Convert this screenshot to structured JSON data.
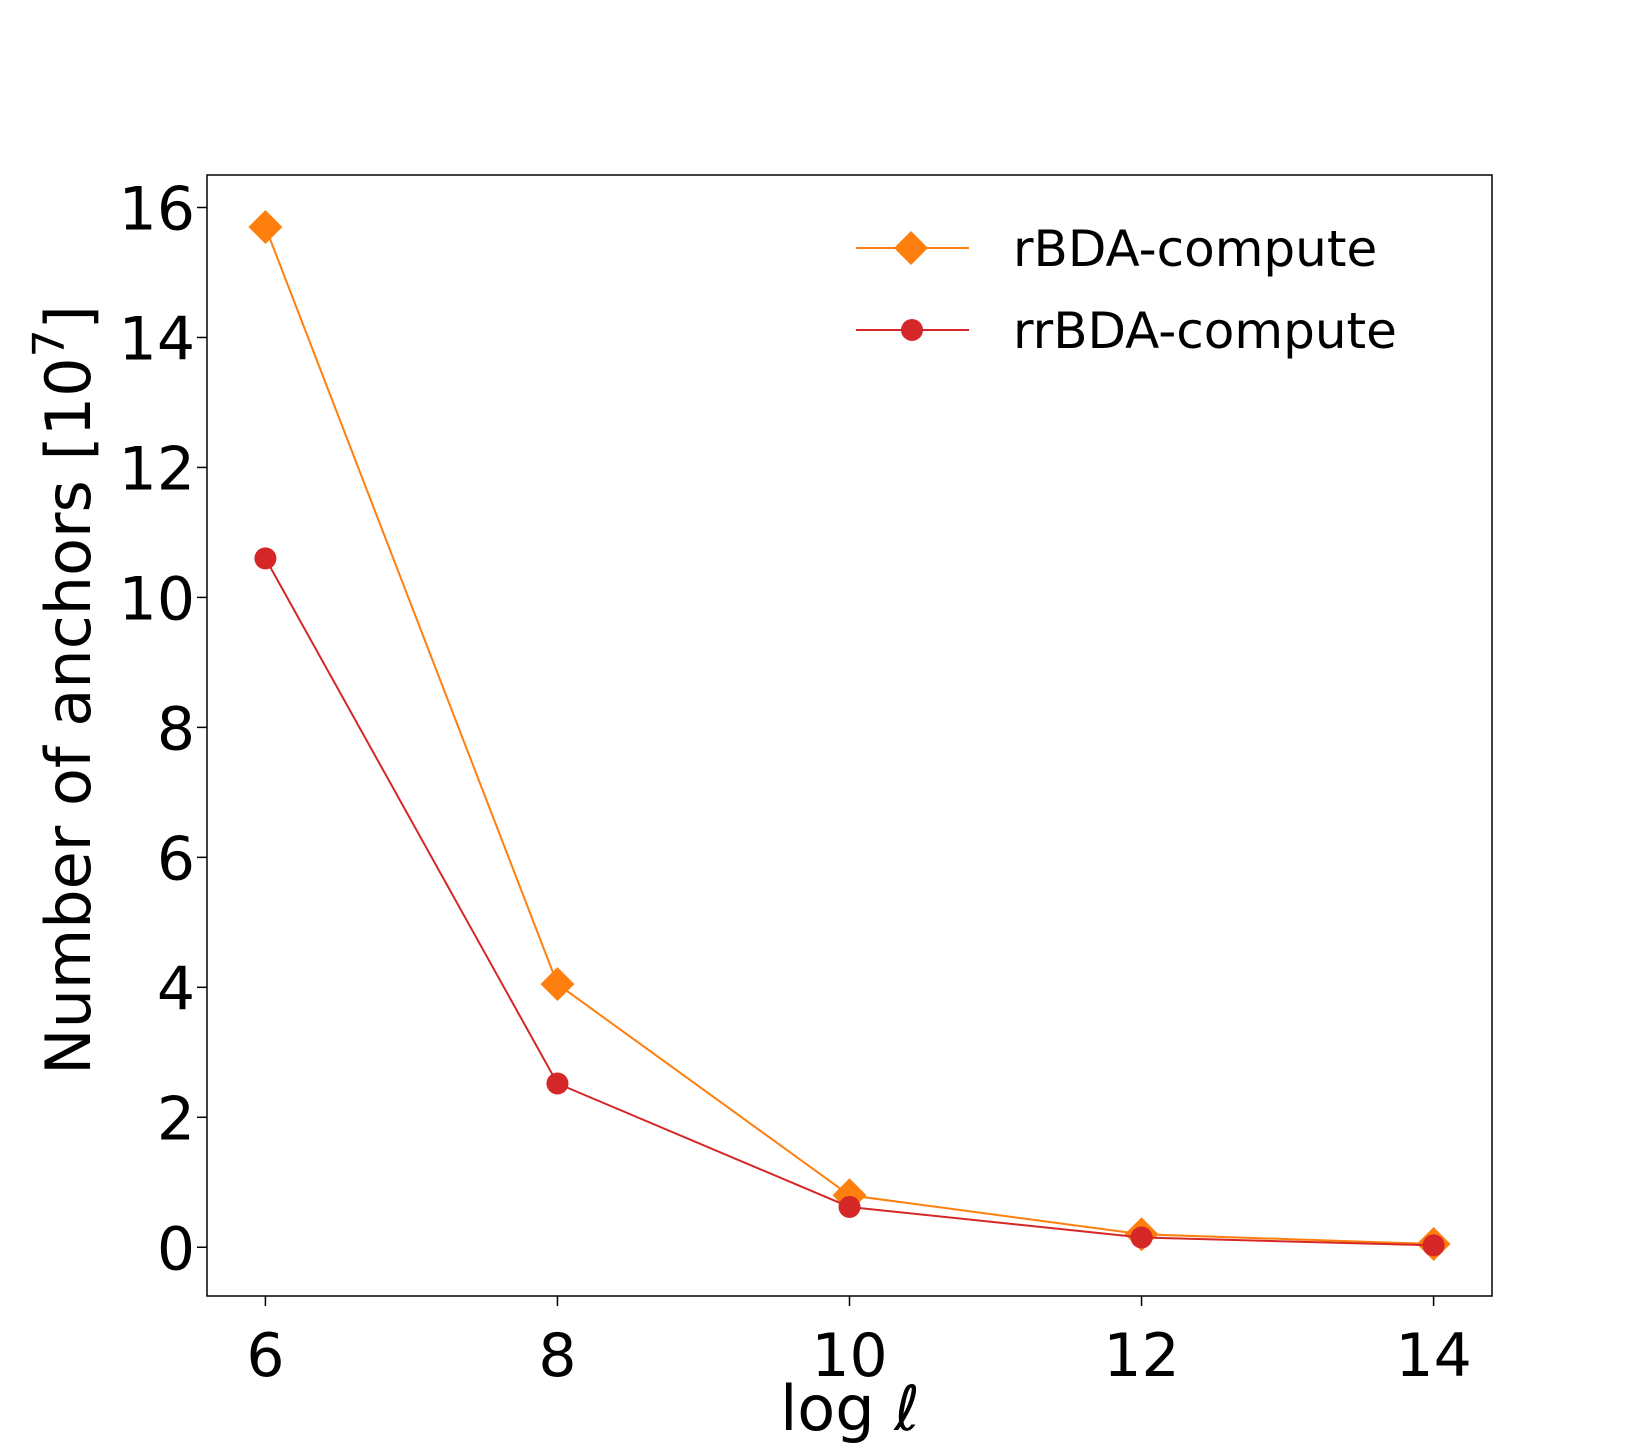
{
  "chart_data": {
    "type": "line",
    "title": "",
    "xlabel": "log ℓ",
    "ylabel": "Number of anchors [10",
    "ylabel_exponent": "7",
    "ylabel_close": "]",
    "xlim": [
      5.6,
      14.4
    ],
    "ylim": [
      -0.75,
      16.5
    ],
    "xticks": [
      6,
      8,
      10,
      12,
      14
    ],
    "yticks": [
      0,
      2,
      4,
      6,
      8,
      10,
      12,
      14,
      16
    ],
    "grid": false,
    "legend_position": "top-right",
    "x": [
      6,
      8,
      10,
      12,
      14
    ],
    "series": [
      {
        "name": "rBDA-compute",
        "values": [
          15.7,
          4.05,
          0.8,
          0.2,
          0.05
        ],
        "color": "#ff7f0e",
        "marker": "diamond"
      },
      {
        "name": "rrBDA-compute",
        "values": [
          10.6,
          2.52,
          0.62,
          0.15,
          0.03
        ],
        "color": "#d62728",
        "marker": "circle"
      }
    ]
  }
}
